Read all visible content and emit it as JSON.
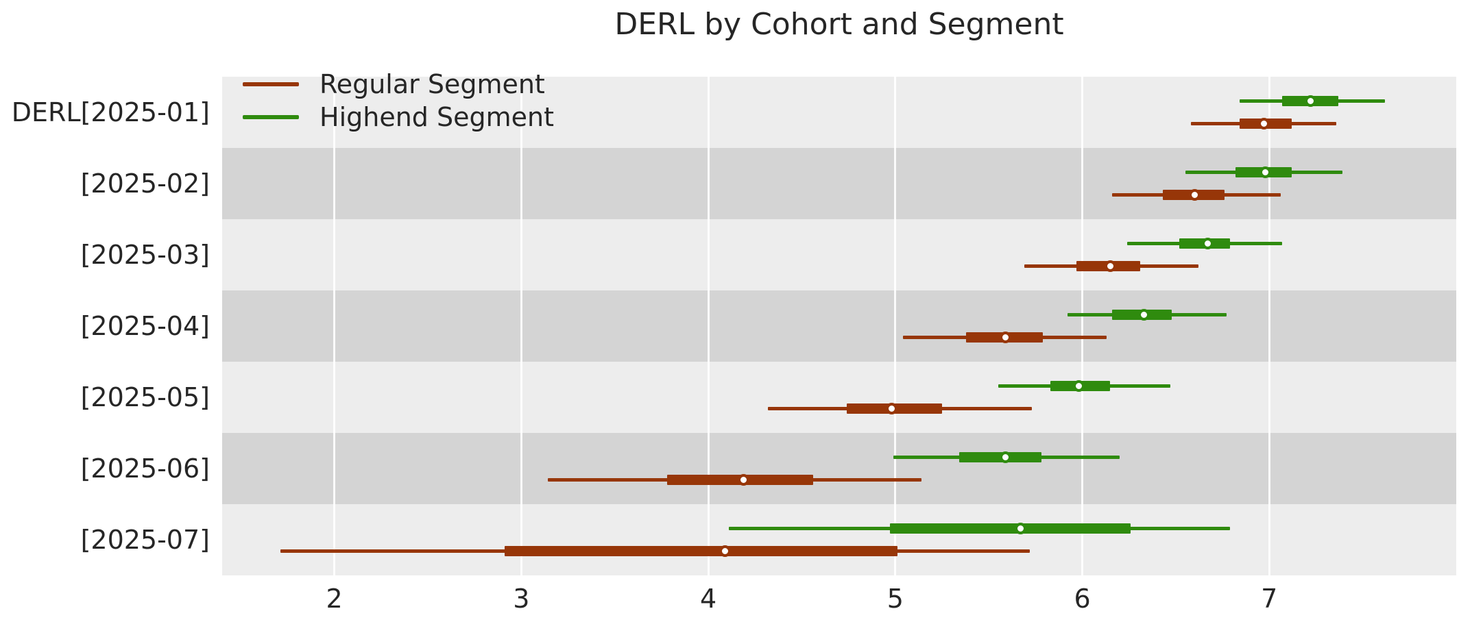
{
  "chart_data": {
    "type": "horizontal_interval_boxplot",
    "title": "DERL by Cohort and Segment",
    "categories": [
      "DERL[2025-01]",
      "[2025-02]",
      "[2025-03]",
      "[2025-04]",
      "[2025-05]",
      "[2025-06]",
      "[2025-07]"
    ],
    "xlabel": "",
    "ylabel": "",
    "x_ticks": [
      2,
      3,
      4,
      5,
      6,
      7
    ],
    "xlim": [
      1.4,
      8.0
    ],
    "grid": "vertical white gridlines over alternating gray row bands",
    "legend_position": "upper-left",
    "series": [
      {
        "name": "Regular Segment",
        "color": "#973608",
        "intervals": [
          {
            "cohort": "2025-01",
            "lo": 6.58,
            "q1": 6.84,
            "med": 6.97,
            "q3": 7.12,
            "hi": 7.36
          },
          {
            "cohort": "2025-02",
            "lo": 6.16,
            "q1": 6.43,
            "med": 6.6,
            "q3": 6.76,
            "hi": 7.06
          },
          {
            "cohort": "2025-03",
            "lo": 5.69,
            "q1": 5.97,
            "med": 6.15,
            "q3": 6.31,
            "hi": 6.62
          },
          {
            "cohort": "2025-04",
            "lo": 5.04,
            "q1": 5.38,
            "med": 5.59,
            "q3": 5.79,
            "hi": 6.13
          },
          {
            "cohort": "2025-05",
            "lo": 4.32,
            "q1": 4.74,
            "med": 4.98,
            "q3": 5.25,
            "hi": 5.73
          },
          {
            "cohort": "2025-06",
            "lo": 3.14,
            "q1": 3.78,
            "med": 4.19,
            "q3": 4.56,
            "hi": 5.14
          },
          {
            "cohort": "2025-07",
            "lo": 1.71,
            "q1": 2.91,
            "med": 4.09,
            "q3": 5.01,
            "hi": 5.72
          }
        ]
      },
      {
        "name": "Highend Segment",
        "color": "#2F8B0E",
        "intervals": [
          {
            "cohort": "2025-01",
            "lo": 6.84,
            "q1": 7.07,
            "med": 7.22,
            "q3": 7.37,
            "hi": 7.62
          },
          {
            "cohort": "2025-02",
            "lo": 6.55,
            "q1": 6.82,
            "med": 6.98,
            "q3": 7.12,
            "hi": 7.39
          },
          {
            "cohort": "2025-03",
            "lo": 6.24,
            "q1": 6.52,
            "med": 6.67,
            "q3": 6.79,
            "hi": 7.07
          },
          {
            "cohort": "2025-04",
            "lo": 5.92,
            "q1": 6.16,
            "med": 6.33,
            "q3": 6.48,
            "hi": 6.77
          },
          {
            "cohort": "2025-05",
            "lo": 5.55,
            "q1": 5.83,
            "med": 5.98,
            "q3": 6.15,
            "hi": 6.47
          },
          {
            "cohort": "2025-06",
            "lo": 4.99,
            "q1": 5.34,
            "med": 5.59,
            "q3": 5.78,
            "hi": 6.2
          },
          {
            "cohort": "2025-07",
            "lo": 4.11,
            "q1": 4.97,
            "med": 5.67,
            "q3": 6.26,
            "hi": 6.79
          }
        ]
      }
    ]
  },
  "styles": {
    "band_light": "#EDEDED",
    "band_dark": "#D4D4D4",
    "grid_color": "#FFFFFF",
    "text_color": "#262626",
    "background": "#FFFFFF",
    "marker_fill": "#FFFFFF"
  }
}
